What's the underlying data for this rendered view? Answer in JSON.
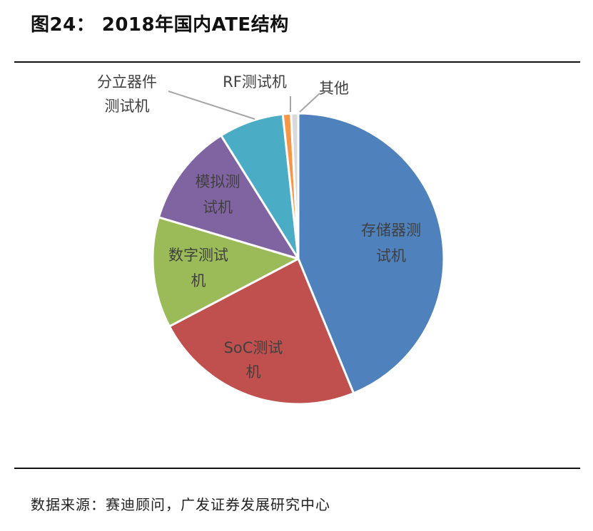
{
  "figure": {
    "title": "图24：  2018年国内ATE结构",
    "source": "数据来源：赛迪顾问，广发证券发展研究中心"
  },
  "chart_data": {
    "type": "pie",
    "start_angle_deg": 0,
    "direction": "clockwise",
    "slices": [
      {
        "label_lines": [
          "存储器测",
          "试机"
        ],
        "value": 43.8,
        "color": "#4f81bd",
        "label_position": "inside"
      },
      {
        "label_lines": [
          "SoC测试",
          "机"
        ],
        "value": 23.5,
        "color": "#c0504d",
        "label_position": "inside"
      },
      {
        "label_lines": [
          "数字测试",
          "机"
        ],
        "value": 12.3,
        "color": "#9bbb59",
        "label_position": "inside"
      },
      {
        "label_lines": [
          "模拟测",
          "试机"
        ],
        "value": 11.5,
        "color": "#8064a2",
        "label_position": "inside"
      },
      {
        "label_lines": [
          "分立器件",
          "测试机"
        ],
        "value": 7.2,
        "color": "#4bacc6",
        "label_position": "outside"
      },
      {
        "label_lines": [
          "RF测试机"
        ],
        "value": 0.9,
        "color": "#f79646",
        "label_position": "outside"
      },
      {
        "label_lines": [
          "其他"
        ],
        "value": 0.8,
        "color": "#d9d9d9",
        "label_position": "outside"
      }
    ]
  }
}
